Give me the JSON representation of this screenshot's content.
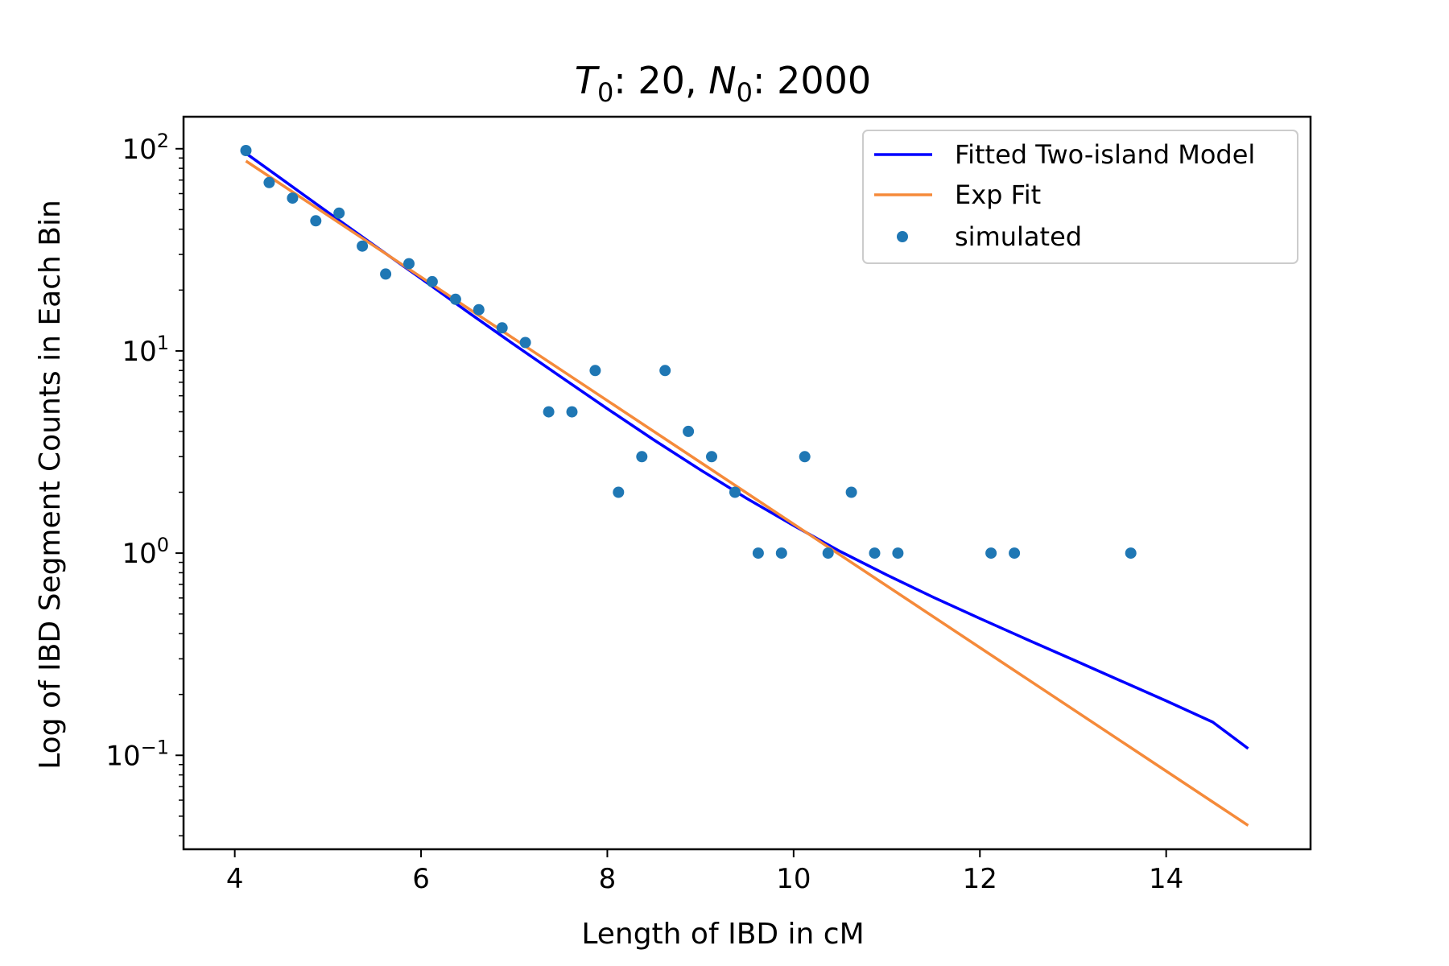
{
  "chart_data": {
    "type": "scatter",
    "title": "T0: 20, N0: 2000",
    "title_parts": {
      "T_var": "T",
      "T_sub": "0",
      "T_val": ": 20, ",
      "N_var": "N",
      "N_sub": "0",
      "N_val": ": 2000"
    },
    "xlabel": "Length of IBD in cM",
    "ylabel": "Log of IBD Segment Counts in Each Bin",
    "xlim": [
      3.45,
      15.55
    ],
    "ylim": [
      0.0343,
      144
    ],
    "y_scale": "log",
    "x_ticks": [
      4,
      6,
      8,
      10,
      12,
      14
    ],
    "x_tick_labels": [
      "4",
      "6",
      "8",
      "10",
      "12",
      "14"
    ],
    "y_ticks": [
      {
        "value": 100,
        "base": "10",
        "exp": "2"
      },
      {
        "value": 10,
        "base": "10",
        "exp": "1"
      },
      {
        "value": 1,
        "base": "10",
        "exp": "0"
      },
      {
        "value": 0.1,
        "base": "10",
        "exp": "−1"
      }
    ],
    "grid": false,
    "legend_position": "upper right",
    "legend": [
      "Fitted Two-island Model",
      "Exp Fit",
      "simulated"
    ],
    "series": [
      {
        "name": "Fitted Two-island Model",
        "kind": "line",
        "color": "#0000ff",
        "x": [
          4.12,
          4.5,
          5,
          5.5,
          6,
          6.5,
          7,
          7.5,
          8,
          8.5,
          9,
          9.5,
          10,
          10.5,
          11,
          11.5,
          12,
          12.5,
          13,
          13.5,
          14,
          14.5,
          14.88
        ],
        "y": [
          95,
          71,
          48.5,
          33.2,
          22.8,
          15.6,
          10.75,
          7.45,
          5.18,
          3.63,
          2.58,
          1.86,
          1.37,
          1.02,
          0.78,
          0.605,
          0.475,
          0.375,
          0.297,
          0.235,
          0.186,
          0.146,
          0.108
        ]
      },
      {
        "name": "Exp Fit",
        "kind": "line",
        "color": "#f58a3a",
        "x": [
          4.12,
          14.88
        ],
        "y": [
          87,
          0.045
        ]
      },
      {
        "name": "simulated",
        "kind": "scatter",
        "color": "#1f77b4",
        "x": [
          4.12,
          4.37,
          4.62,
          4.87,
          5.12,
          5.37,
          5.62,
          5.87,
          6.12,
          6.37,
          6.62,
          6.87,
          7.12,
          7.37,
          7.62,
          7.87,
          8.12,
          8.37,
          8.62,
          8.87,
          9.12,
          9.37,
          9.62,
          9.87,
          10.12,
          10.37,
          10.62,
          10.87,
          11.12,
          12.12,
          12.37,
          13.62
        ],
        "y": [
          98,
          68,
          57,
          44,
          48,
          33,
          24,
          27,
          22,
          18,
          16,
          13,
          11,
          5,
          5,
          8,
          2,
          3,
          8,
          4,
          3,
          2,
          1,
          1,
          3,
          1,
          2,
          1,
          1,
          1,
          1,
          1
        ]
      }
    ]
  }
}
